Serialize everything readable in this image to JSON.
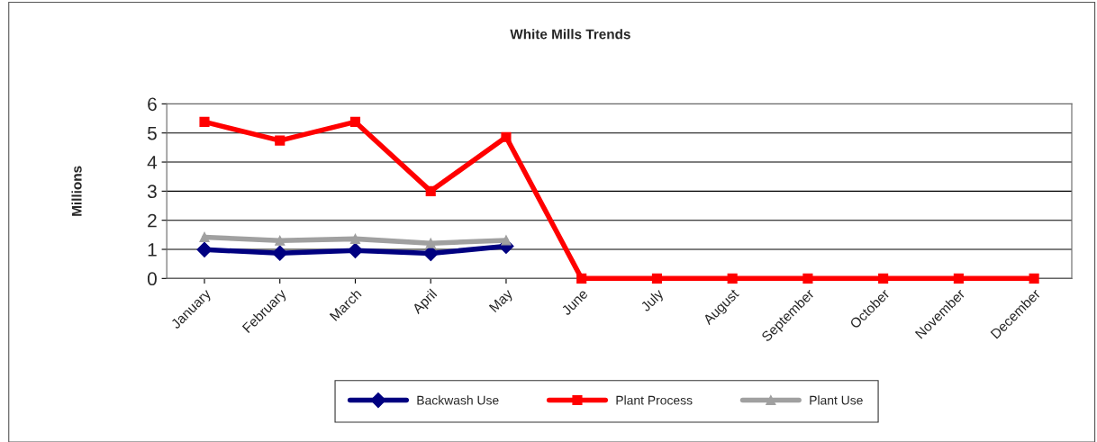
{
  "chart_data": {
    "type": "line",
    "title": "White Mills Trends",
    "ylabel": "Millions",
    "categories": [
      "January",
      "February",
      "March",
      "April",
      "May",
      "June",
      "July",
      "August",
      "September",
      "October",
      "November",
      "December"
    ],
    "series": [
      {
        "name": "Backwash Use",
        "color": "#000080",
        "marker": "diamond",
        "values": [
          0.99,
          0.87,
          0.96,
          0.86,
          1.11,
          null,
          null,
          null,
          null,
          null,
          null,
          null
        ]
      },
      {
        "name": "Plant Process",
        "color": "#ff0000",
        "marker": "square",
        "values": [
          5.38,
          4.74,
          5.38,
          3.0,
          4.86,
          0,
          0,
          0,
          0,
          0,
          0,
          0
        ]
      },
      {
        "name": "Plant Use",
        "color": "#a0a0a0",
        "marker": "triangle",
        "values": [
          1.42,
          1.3,
          1.36,
          1.21,
          1.31,
          null,
          null,
          null,
          null,
          null,
          null,
          null
        ]
      }
    ],
    "ylim": [
      0,
      6
    ],
    "yticks": [
      0,
      1,
      2,
      3,
      4,
      5,
      6
    ],
    "grid": "y",
    "legend": "bottom"
  }
}
